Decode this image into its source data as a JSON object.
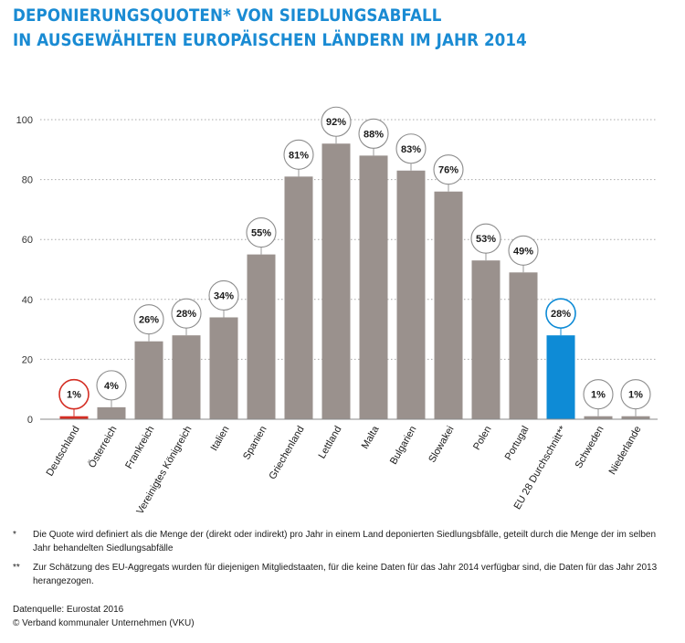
{
  "title": {
    "line1": "DEPONIERUNGSQUOTEN* VON SIEDLUNGSABFALL",
    "line2": "IN AUSGEWÄHLTEN EUROPÄISCHEN LÄNDERN IM JAHR 2014"
  },
  "chart_data": {
    "type": "bar",
    "categories": [
      "Deutschland",
      "Österreich",
      "Frankreich",
      "Vereinigtes Königreich",
      "Italien",
      "Spanien",
      "Griechenland",
      "Lettland",
      "Malta",
      "Bulgarien",
      "Slowakei",
      "Polen",
      "Portugal",
      "EU 28 Durchschnitt**",
      "Schweden",
      "Niederlande"
    ],
    "values": [
      1,
      4,
      26,
      28,
      34,
      55,
      81,
      92,
      88,
      83,
      76,
      53,
      49,
      28,
      1,
      1
    ],
    "value_labels": [
      "1%",
      "4%",
      "26%",
      "28%",
      "34%",
      "55%",
      "81%",
      "92%",
      "88%",
      "83%",
      "76%",
      "53%",
      "49%",
      "28%",
      "1%",
      "1%"
    ],
    "highlight": {
      "Deutschland": "#d42e24",
      "EU 28 Durchschnitt**": "#0e8bd6"
    },
    "bar_color": "#9a918d",
    "ylim": [
      0,
      100
    ],
    "yticks": [
      0,
      20,
      40,
      60,
      80,
      100
    ],
    "grid": true,
    "xlabel": "",
    "ylabel": ""
  },
  "footnotes": [
    {
      "mark": "*",
      "text": "Die Quote wird definiert als die Menge der (direkt oder indirekt) pro Jahr in einem Land deponierten Siedlungsbfälle, geteilt durch die Menge der im selben Jahr behandelten Siedlungsabfälle"
    },
    {
      "mark": "**",
      "text": "Zur Schätzung des EU-Aggregats wurden für diejenigen Mitgliedstaaten, für die keine Daten für das Jahr 2014 verfügbar sind, die Daten für das Jahr 2013 herangezogen."
    }
  ],
  "source": {
    "line1": "Datenquelle: Eurostat 2016",
    "line2": "© Verband kommunaler Unternehmen (VKU)"
  }
}
